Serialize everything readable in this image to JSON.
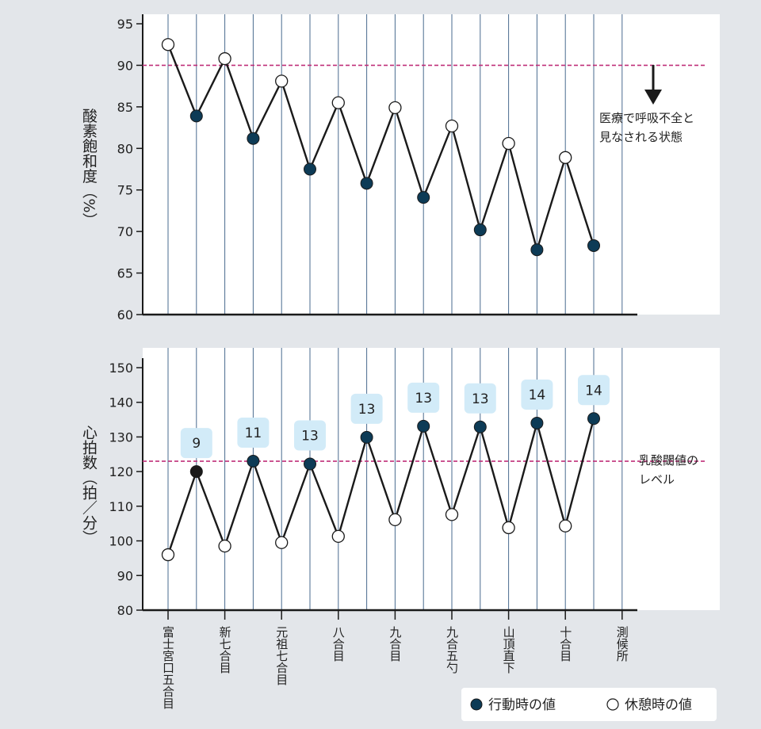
{
  "colors": {
    "background": "#e3e6ea",
    "plot_bg": "#ffffff",
    "gridline": "#4a6b8f",
    "threshold": "#c0307a",
    "action_fill": "#0d3b56",
    "rest_fill": "#ffffff",
    "highlight_fill": "#1a1a1a",
    "badge_fill": "#d2ebf8",
    "line": "#1a1a1a"
  },
  "chart_data": [
    {
      "type": "line",
      "ylabel": "酸素飽和度（%）",
      "ylim": [
        60,
        95
      ],
      "yticks": [
        95,
        90,
        85,
        80,
        75,
        70,
        65,
        60
      ],
      "threshold": 90,
      "annotation": [
        "医療で呼吸不全と",
        "見なされる状態"
      ],
      "values": [
        92.5,
        83.9,
        90.8,
        81.2,
        88.1,
        77.5,
        85.5,
        75.8,
        84.9,
        74.1,
        82.7,
        70.2,
        80.6,
        67.8,
        78.9,
        68.3
      ],
      "types": [
        "rest",
        "action",
        "rest",
        "action",
        "rest",
        "action",
        "rest",
        "action",
        "rest",
        "action",
        "rest",
        "action",
        "rest",
        "action",
        "rest",
        "action"
      ]
    },
    {
      "type": "line",
      "ylabel": "心拍数（拍／分）",
      "ylim": [
        80,
        150
      ],
      "yticks": [
        150,
        140,
        130,
        120,
        110,
        100,
        90,
        80
      ],
      "threshold": 123,
      "annotation": [
        "乳酸閾値の",
        "レベル"
      ],
      "values": [
        96,
        120,
        98.5,
        123,
        99.5,
        122.2,
        101.3,
        129.9,
        106.1,
        133.1,
        107.6,
        132.9,
        103.8,
        134,
        104.3,
        135.3
      ],
      "types": [
        "rest",
        "highlight",
        "rest",
        "action",
        "rest",
        "action",
        "rest",
        "action",
        "rest",
        "action",
        "rest",
        "action",
        "rest",
        "action",
        "rest",
        "action"
      ],
      "badges": [
        "",
        "9",
        "",
        "11",
        "",
        "13",
        "",
        "13",
        "",
        "13",
        "",
        "13",
        "",
        "14",
        "",
        "14"
      ]
    }
  ],
  "stations": [
    {
      "label": "富士宮口五合目",
      "col": 0
    },
    {
      "label": "新七合目",
      "col": 2
    },
    {
      "label": "元祖七合目",
      "col": 4
    },
    {
      "label": "八合目",
      "col": 6
    },
    {
      "label": "九合目",
      "col": 8
    },
    {
      "label": "九合五勺",
      "col": 10
    },
    {
      "label": "山頂直下",
      "col": 12
    },
    {
      "label": "十合目",
      "col": 14
    },
    {
      "label": "測候所",
      "col": 16
    }
  ],
  "legend": {
    "action_label": "行動時の値",
    "rest_label": "休憩時の値"
  }
}
